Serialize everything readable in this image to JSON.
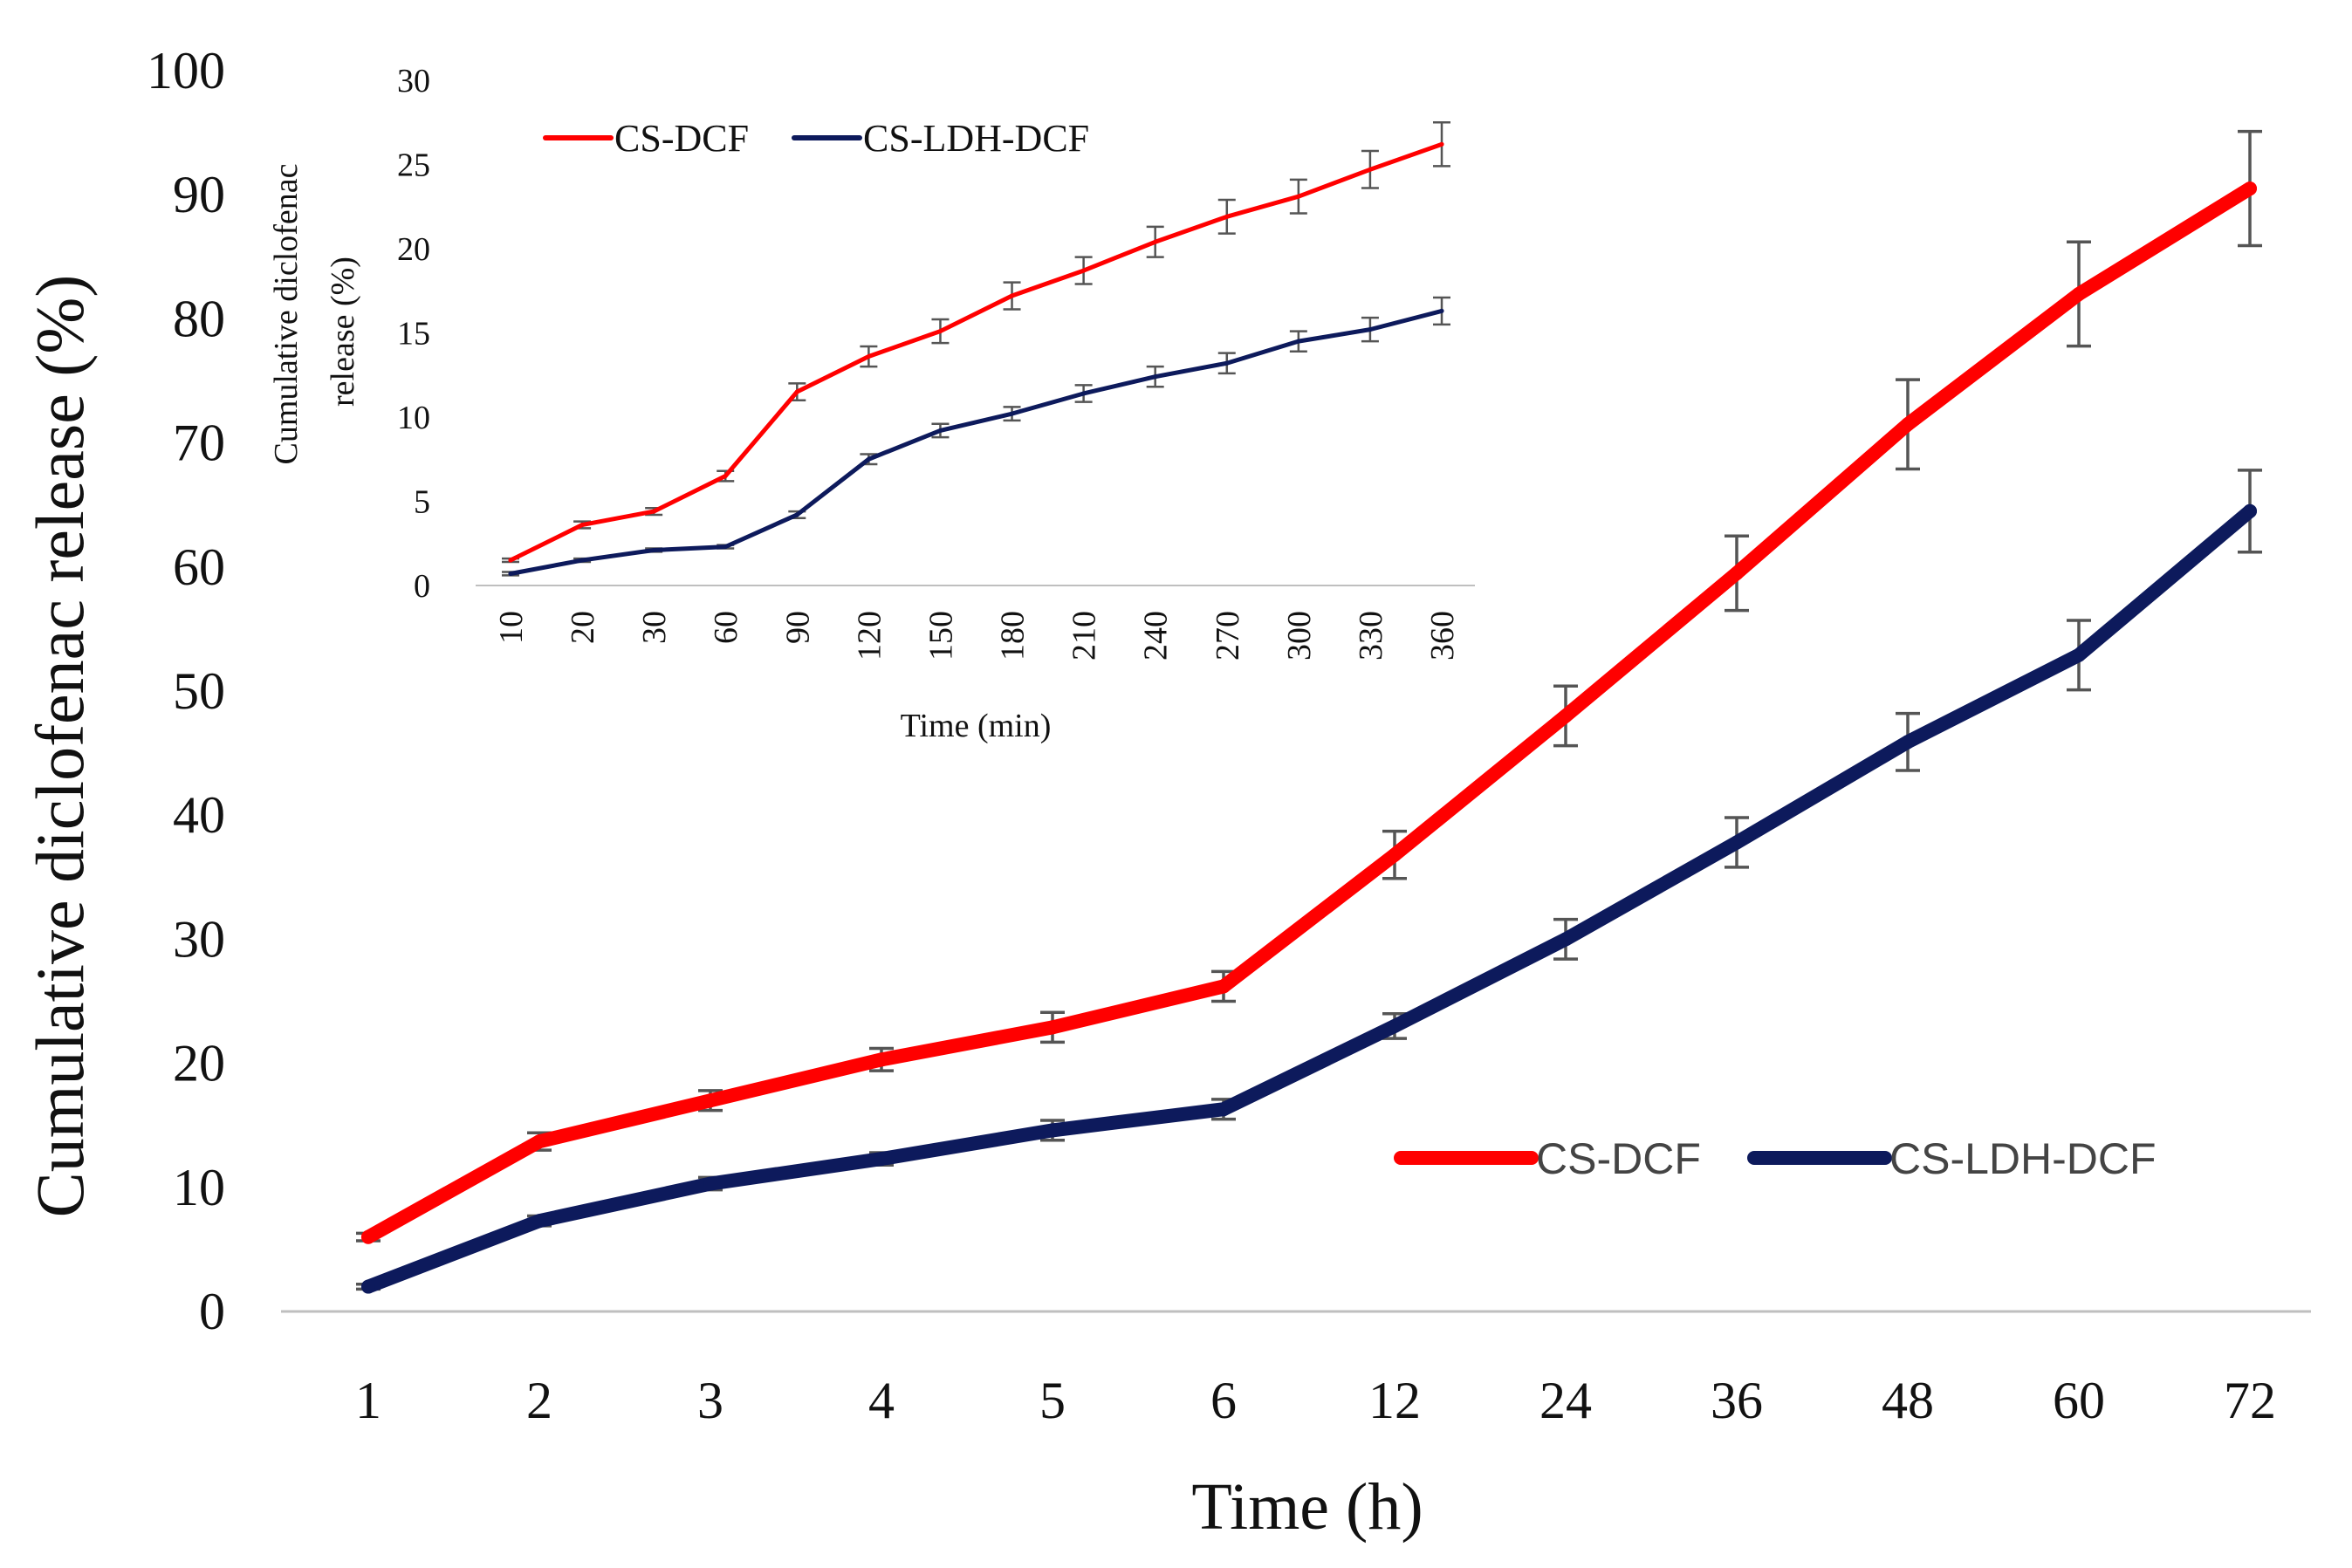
{
  "chart_data": [
    {
      "id": "main",
      "type": "line",
      "xlabel": "Time (h)",
      "ylabel": "Cumulative diclofenac release (%)",
      "categories": [
        "1",
        "2",
        "3",
        "4",
        "5",
        "6",
        "12",
        "24",
        "36",
        "48",
        "60",
        "72"
      ],
      "ylim": [
        0,
        100
      ],
      "yticks": [
        "0",
        "10",
        "20",
        "30",
        "40",
        "50",
        "60",
        "70",
        "80",
        "90",
        "100"
      ],
      "grid": false,
      "legend": "lower-right",
      "series": [
        {
          "name": "CS-DCF",
          "color": "#ff0000",
          "values": [
            6.0,
            13.7,
            17.0,
            20.3,
            22.9,
            26.2,
            36.8,
            48.0,
            59.5,
            71.5,
            82.0,
            90.5
          ],
          "errors": [
            0.3,
            0.7,
            0.8,
            0.9,
            1.2,
            1.2,
            1.9,
            2.4,
            3.0,
            3.6,
            4.2,
            4.6
          ]
        },
        {
          "name": "CS-LDH-DCF",
          "color": "#0d1a5c",
          "values": [
            2.0,
            7.3,
            10.3,
            12.3,
            14.6,
            16.3,
            23.0,
            30.0,
            37.8,
            45.9,
            52.9,
            64.5
          ],
          "errors": [
            0.2,
            0.4,
            0.5,
            0.5,
            0.8,
            0.8,
            1.0,
            1.6,
            2.0,
            2.3,
            2.8,
            3.3
          ]
        }
      ]
    },
    {
      "id": "inset",
      "type": "line",
      "xlabel": "Time (min)",
      "ylabel": "Cumulative diclofenac release (%)",
      "ylabel_lines": [
        "Cumulative diclofenac",
        "release (%)"
      ],
      "categories": [
        "10",
        "20",
        "30",
        "60",
        "90",
        "120",
        "150",
        "180",
        "210",
        "240",
        "270",
        "300",
        "330",
        "360"
      ],
      "ylim": [
        0,
        30
      ],
      "yticks": [
        "0",
        "5",
        "10",
        "15",
        "20",
        "25",
        "30"
      ],
      "grid": false,
      "legend": "top-left",
      "series": [
        {
          "name": "CS-DCF",
          "color": "#ff0000",
          "values": [
            1.5,
            3.6,
            4.4,
            6.5,
            11.5,
            13.6,
            15.1,
            17.2,
            18.7,
            20.4,
            21.9,
            23.1,
            24.7,
            26.2
          ],
          "errors": [
            0.1,
            0.2,
            0.2,
            0.3,
            0.5,
            0.6,
            0.7,
            0.8,
            0.8,
            0.9,
            1.0,
            1.0,
            1.1,
            1.3
          ]
        },
        {
          "name": "CS-LDH-DCF",
          "color": "#0d1a5c",
          "values": [
            0.7,
            1.5,
            2.1,
            2.3,
            4.2,
            7.5,
            9.2,
            10.2,
            11.4,
            12.4,
            13.2,
            14.5,
            15.2,
            16.3
          ],
          "errors": [
            0.1,
            0.1,
            0.1,
            0.1,
            0.2,
            0.3,
            0.4,
            0.4,
            0.5,
            0.6,
            0.6,
            0.6,
            0.7,
            0.8
          ]
        }
      ]
    }
  ]
}
